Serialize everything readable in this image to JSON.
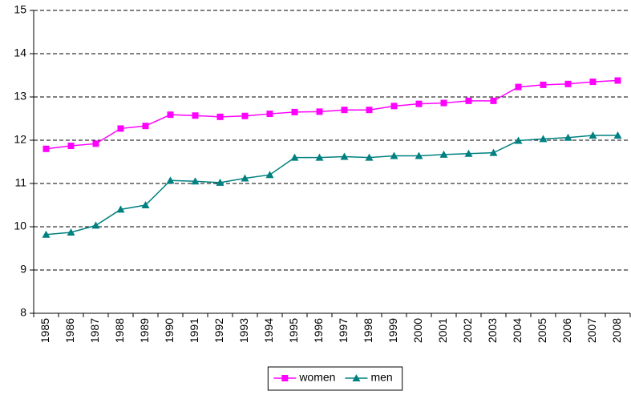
{
  "chart_data": {
    "type": "line",
    "categories": [
      "1985",
      "1986",
      "1987",
      "1988",
      "1989",
      "1990",
      "1991",
      "1992",
      "1993",
      "1994",
      "1995",
      "1996",
      "1997",
      "1998",
      "1999",
      "2000",
      "2001",
      "2002",
      "2003",
      "2004",
      "2005",
      "2006",
      "2007",
      "2008"
    ],
    "series": [
      {
        "name": "women",
        "color": "#ff00ff",
        "marker": "square",
        "values": [
          11.8,
          11.87,
          11.92,
          12.27,
          12.33,
          12.59,
          12.57,
          12.54,
          12.56,
          12.61,
          12.65,
          12.66,
          12.7,
          12.7,
          12.79,
          12.84,
          12.86,
          12.91,
          12.91,
          13.23,
          13.28,
          13.3,
          13.35,
          13.38
        ]
      },
      {
        "name": "men",
        "color": "#008080",
        "marker": "triangle",
        "values": [
          9.82,
          9.87,
          10.03,
          10.4,
          10.5,
          11.07,
          11.05,
          11.02,
          11.12,
          11.2,
          11.6,
          11.6,
          11.62,
          11.6,
          11.64,
          11.64,
          11.67,
          11.69,
          11.71,
          11.99,
          12.03,
          12.06,
          12.11,
          12.11
        ]
      }
    ],
    "ylim": [
      8,
      15
    ],
    "yticks": [
      8,
      9,
      10,
      11,
      12,
      13,
      14,
      15
    ],
    "grid": true,
    "legend": "bottom"
  }
}
